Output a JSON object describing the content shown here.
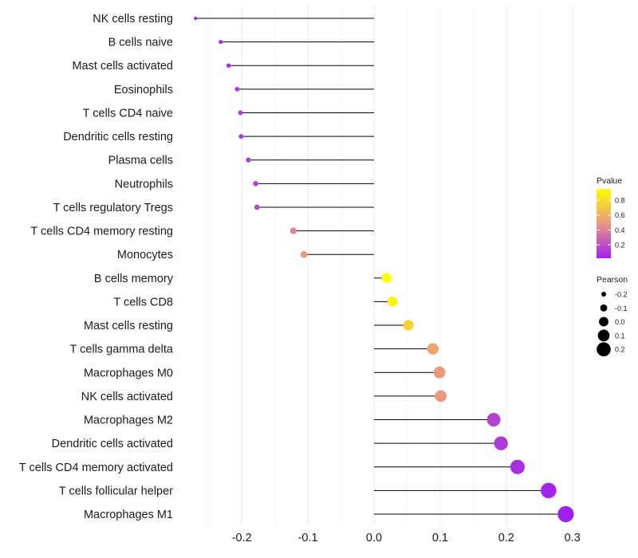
{
  "chart_data": {
    "type": "lollipop",
    "title": "",
    "xlabel": "",
    "ylabel": "",
    "xlim": [
      -0.28,
      0.3
    ],
    "xticks": [
      -0.2,
      -0.1,
      0.0,
      0.1,
      0.2,
      0.3
    ],
    "xtick_labels": [
      "-0.2",
      "-0.1",
      "0.0",
      "0.1",
      "0.2",
      "0.3"
    ],
    "categories": [
      "NK cells resting",
      "B cells naive",
      "Mast cells activated",
      "Eosinophils",
      "T cells CD4 naive",
      "Dendritic cells resting",
      "Plasma cells",
      "Neutrophils",
      "T cells regulatory  Tregs ",
      "T cells CD4 memory resting",
      "Monocytes",
      "B cells memory",
      "T cells CD8",
      "Mast cells resting",
      "T cells gamma delta",
      "Macrophages M0",
      "NK cells activated",
      "Macrophages M2",
      "Dendritic cells activated",
      "T cells CD4 memory activated",
      "T cells follicular helper",
      "Macrophages M1"
    ],
    "pearson": [
      -0.27,
      -0.232,
      -0.22,
      -0.207,
      -0.202,
      -0.201,
      -0.19,
      -0.179,
      -0.177,
      -0.122,
      -0.106,
      0.019,
      0.028,
      0.052,
      0.089,
      0.099,
      0.101,
      0.181,
      0.192,
      0.217,
      0.264,
      0.29
    ],
    "pvalue": [
      0.02,
      0.06,
      0.08,
      0.1,
      0.11,
      0.115,
      0.14,
      0.17,
      0.175,
      0.42,
      0.5,
      0.95,
      0.9,
      0.75,
      0.55,
      0.5,
      0.5,
      0.15,
      0.12,
      0.08,
      0.04,
      0.02
    ],
    "legend_pvalue": {
      "title": "Pvalue",
      "ticks": [
        0.2,
        0.4,
        0.6,
        0.8
      ],
      "tick_labels": [
        "0.2",
        "0.4",
        "0.6",
        "0.8"
      ],
      "range": [
        0.02,
        0.95
      ],
      "color_low": "#A020F0",
      "color_mid": "#E89880",
      "color_high": "#FFFF00"
    },
    "legend_pearson": {
      "title": "Pearson",
      "values": [
        -0.2,
        -0.1,
        0.0,
        0.1,
        0.2
      ],
      "labels": [
        "-0.2",
        "-0.1",
        "0.0",
        "0.1",
        "0.2"
      ]
    },
    "legend_placement": "right",
    "grid": true
  }
}
